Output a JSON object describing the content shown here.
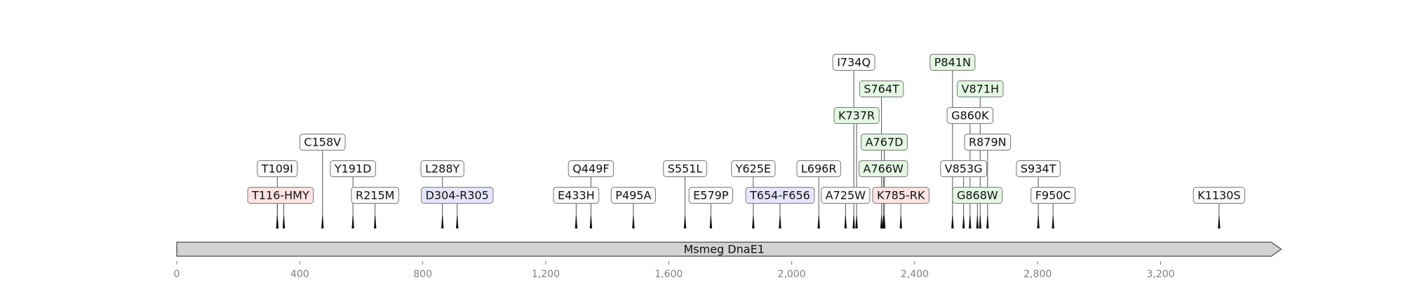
{
  "sequence": {
    "name": "Msmeg DnaE1",
    "length": 3560,
    "fill": "#d3d3d3",
    "stroke": "#222222"
  },
  "axis": {
    "range": [
      0,
      3600
    ],
    "ticks": [
      0,
      400,
      800,
      1200,
      1600,
      2000,
      2400,
      2800,
      3200
    ],
    "tick_labels": [
      "0",
      "400",
      "800",
      "1,200",
      "1,600",
      "2,000",
      "2,400",
      "2,800",
      "3,200"
    ],
    "color": "#808080"
  },
  "colors": {
    "white": "#fafafa",
    "red": "#fde3e3",
    "blue": "#e6e6fb",
    "green": "#e3f7e3",
    "border": "#777777"
  },
  "features": [
    {
      "label": "T109I",
      "pos": [
        327
      ],
      "level": 2,
      "color": "white"
    },
    {
      "label": "T116-HMY",
      "pos": [
        327,
        348
      ],
      "level": 1,
      "color": "red"
    },
    {
      "label": "C158V",
      "pos": [
        474
      ],
      "level": 3,
      "color": "white"
    },
    {
      "label": "Y191D",
      "pos": [
        573
      ],
      "level": 2,
      "color": "white"
    },
    {
      "label": "R215M",
      "pos": [
        645
      ],
      "level": 1,
      "color": "white"
    },
    {
      "label": "L288Y",
      "pos": [
        864
      ],
      "level": 2,
      "color": "white"
    },
    {
      "label": "D304-R305",
      "pos": [
        912
      ],
      "level": 1,
      "color": "blue"
    },
    {
      "label": "E433H",
      "pos": [
        1299
      ],
      "level": 1,
      "color": "white"
    },
    {
      "label": "Q449F",
      "pos": [
        1347
      ],
      "level": 2,
      "color": "white"
    },
    {
      "label": "P495A",
      "pos": [
        1485
      ],
      "level": 1,
      "color": "white"
    },
    {
      "label": "S551L",
      "pos": [
        1653
      ],
      "level": 2,
      "color": "white"
    },
    {
      "label": "E579P",
      "pos": [
        1737
      ],
      "level": 1,
      "color": "white"
    },
    {
      "label": "Y625E",
      "pos": [
        1875
      ],
      "level": 2,
      "color": "white"
    },
    {
      "label": "T654-F656",
      "pos": [
        1962
      ],
      "level": 1,
      "color": "blue"
    },
    {
      "label": "L696R",
      "pos": [
        2088
      ],
      "level": 2,
      "color": "white"
    },
    {
      "label": "A725W",
      "pos": [
        2175
      ],
      "level": 1,
      "color": "white"
    },
    {
      "label": "I734Q",
      "pos": [
        2202
      ],
      "level": 6,
      "color": "white"
    },
    {
      "label": "K737R",
      "pos": [
        2211
      ],
      "level": 4,
      "color": "green"
    },
    {
      "label": "S764T",
      "pos": [
        2292
      ],
      "level": 5,
      "color": "green"
    },
    {
      "label": "A766W",
      "pos": [
        2298
      ],
      "level": 2,
      "color": "green"
    },
    {
      "label": "A767D",
      "pos": [
        2301
      ],
      "level": 3,
      "color": "green"
    },
    {
      "label": "K785-RK",
      "pos": [
        2355
      ],
      "level": 1,
      "color": "red"
    },
    {
      "label": "P841N",
      "pos": [
        2523
      ],
      "level": 6,
      "color": "green"
    },
    {
      "label": "V853G",
      "pos": [
        2559
      ],
      "level": 2,
      "color": "white"
    },
    {
      "label": "G860K",
      "pos": [
        2580
      ],
      "level": 4,
      "color": "white"
    },
    {
      "label": "G868W",
      "pos": [
        2604
      ],
      "level": 1,
      "color": "green"
    },
    {
      "label": "V871H",
      "pos": [
        2613
      ],
      "level": 5,
      "color": "green"
    },
    {
      "label": "R879N",
      "pos": [
        2637
      ],
      "level": 3,
      "color": "white"
    },
    {
      "label": "S934T",
      "pos": [
        2802
      ],
      "level": 2,
      "color": "white"
    },
    {
      "label": "F950C",
      "pos": [
        2850
      ],
      "level": 1,
      "color": "white"
    },
    {
      "label": "K1130S",
      "pos": [
        3390
      ],
      "level": 1,
      "color": "white"
    }
  ]
}
